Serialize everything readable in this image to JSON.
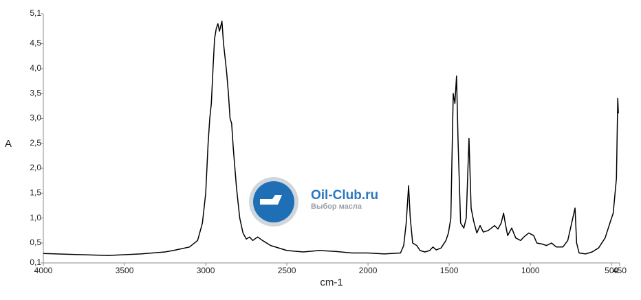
{
  "chart_data": {
    "type": "line",
    "x_label": "cm-1",
    "y_label": "A",
    "annotations": [
      "Oil-Club.ru",
      "Выбор масла"
    ],
    "x": [
      4000,
      3800,
      3600,
      3400,
      3250,
      3200,
      3100,
      3050,
      3020,
      3000,
      2985,
      2975,
      2965,
      2955,
      2945,
      2935,
      2925,
      2915,
      2900,
      2890,
      2880,
      2870,
      2860,
      2850,
      2840,
      2830,
      2810,
      2790,
      2770,
      2750,
      2730,
      2710,
      2680,
      2650,
      2600,
      2500,
      2400,
      2300,
      2200,
      2100,
      2000,
      1900,
      1800,
      1780,
      1765,
      1750,
      1740,
      1725,
      1700,
      1680,
      1650,
      1620,
      1600,
      1580,
      1550,
      1520,
      1505,
      1490,
      1475,
      1465,
      1455,
      1445,
      1430,
      1410,
      1395,
      1378,
      1365,
      1350,
      1330,
      1310,
      1290,
      1260,
      1240,
      1220,
      1200,
      1180,
      1165,
      1155,
      1140,
      1115,
      1090,
      1060,
      1040,
      1010,
      980,
      960,
      930,
      900,
      870,
      840,
      800,
      770,
      725,
      715,
      700,
      660,
      620,
      580,
      540,
      510,
      490,
      470,
      462,
      458
    ],
    "series": [
      {
        "name": "A",
        "color": "#000000",
        "values": [
          0.29,
          0.27,
          0.25,
          0.28,
          0.32,
          0.35,
          0.42,
          0.55,
          0.9,
          1.5,
          2.5,
          3.0,
          3.3,
          4.0,
          4.6,
          4.8,
          4.9,
          4.75,
          4.95,
          4.5,
          4.2,
          3.9,
          3.5,
          3.0,
          2.9,
          2.4,
          1.6,
          1.0,
          0.7,
          0.58,
          0.62,
          0.55,
          0.62,
          0.55,
          0.45,
          0.35,
          0.32,
          0.35,
          0.33,
          0.3,
          0.3,
          0.28,
          0.3,
          0.45,
          0.9,
          1.65,
          1.0,
          0.5,
          0.45,
          0.35,
          0.32,
          0.35,
          0.42,
          0.36,
          0.4,
          0.55,
          0.7,
          1.0,
          3.5,
          3.3,
          3.85,
          2.5,
          0.9,
          0.8,
          1.0,
          2.6,
          1.2,
          0.95,
          0.7,
          0.85,
          0.72,
          0.75,
          0.8,
          0.85,
          0.78,
          0.9,
          1.1,
          0.9,
          0.65,
          0.8,
          0.6,
          0.55,
          0.62,
          0.7,
          0.65,
          0.5,
          0.48,
          0.45,
          0.5,
          0.42,
          0.42,
          0.55,
          1.2,
          0.5,
          0.3,
          0.28,
          0.32,
          0.4,
          0.6,
          0.9,
          1.1,
          1.8,
          3.4,
          3.1
        ]
      }
    ],
    "xlim": [
      4000,
      450
    ],
    "xticks": [
      4000,
      3500,
      3000,
      2500,
      2000,
      1500,
      1000,
      500,
      450
    ],
    "ylim": [
      0.1,
      5.1
    ],
    "yticks": [
      {
        "value": 0.1,
        "label": "0,1"
      },
      {
        "value": 0.5,
        "label": "0,5"
      },
      {
        "value": 1,
        "label": "1,0"
      },
      {
        "value": 1.5,
        "label": "1,5"
      },
      {
        "value": 2,
        "label": "2,0"
      },
      {
        "value": 2.5,
        "label": "2,5"
      },
      {
        "value": 3,
        "label": "3,0"
      },
      {
        "value": 3.5,
        "label": "3,5"
      },
      {
        "value": 4,
        "label": "4,0"
      },
      {
        "value": 4.5,
        "label": "4,5"
      },
      {
        "value": 5.1,
        "label": "5,1"
      }
    ],
    "grid": false
  }
}
